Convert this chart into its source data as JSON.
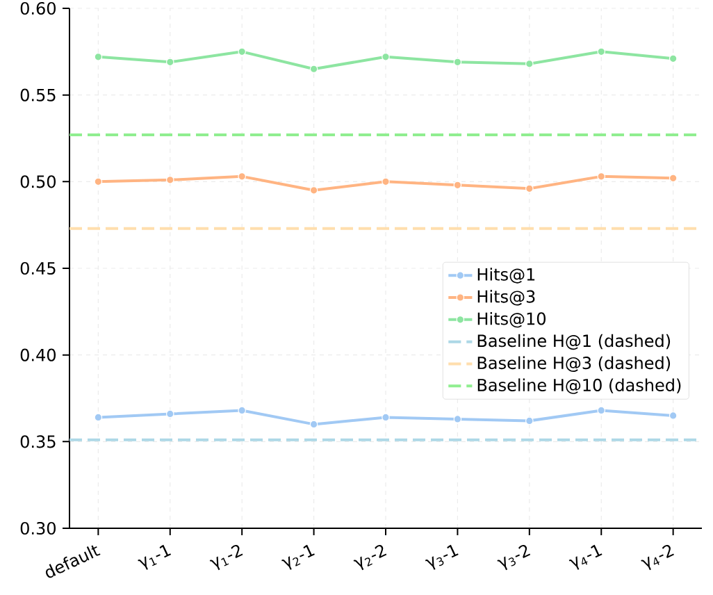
{
  "chart_data": {
    "type": "line",
    "categories": [
      "default",
      "γ$_{1}$-1",
      "γ$_{1}$-2",
      "γ$_{2}$-1",
      "γ$_{2}$-2",
      "γ$_{3}$-1",
      "γ$_{3}$-2",
      "γ$_{4}$-1",
      "γ$_{4}$-2"
    ],
    "series": [
      {
        "name": "Hits@1",
        "color": "#a1c9f4",
        "values": [
          0.364,
          0.366,
          0.368,
          0.36,
          0.364,
          0.363,
          0.362,
          0.368,
          0.365
        ]
      },
      {
        "name": "Hits@3",
        "color": "#ffb482",
        "values": [
          0.5,
          0.501,
          0.503,
          0.495,
          0.5,
          0.498,
          0.496,
          0.503,
          0.502
        ]
      },
      {
        "name": "Hits@10",
        "color": "#8de5a1",
        "values": [
          0.572,
          0.569,
          0.575,
          0.565,
          0.572,
          0.569,
          0.568,
          0.575,
          0.571
        ]
      }
    ],
    "ref_lines": [
      {
        "axis": "y",
        "value": 0.351,
        "label": "Baseline H@1 (dashed)",
        "color": "#add8e6",
        "line_style": "dashed"
      },
      {
        "axis": "y",
        "value": 0.473,
        "label": "Baseline H@3 (dashed)",
        "color": "#ffdead",
        "line_style": "dashed"
      },
      {
        "axis": "y",
        "value": 0.527,
        "label": "Baseline H@10 (dashed)",
        "color": "#90ee90",
        "line_style": "dashed"
      }
    ],
    "ylim": [
      0.3,
      0.6
    ],
    "yticks": [
      {
        "value": 0.3,
        "label": "0.30"
      },
      {
        "value": 0.35,
        "label": "0.35"
      },
      {
        "value": 0.4,
        "label": "0.40"
      },
      {
        "value": 0.45,
        "label": "0.45"
      },
      {
        "value": 0.5,
        "label": "0.50"
      },
      {
        "value": 0.55,
        "label": "0.55"
      },
      {
        "value": 0.6,
        "label": "0.60"
      }
    ],
    "grid": true,
    "legend": "right",
    "marker": "circle",
    "line_style": "solid"
  }
}
